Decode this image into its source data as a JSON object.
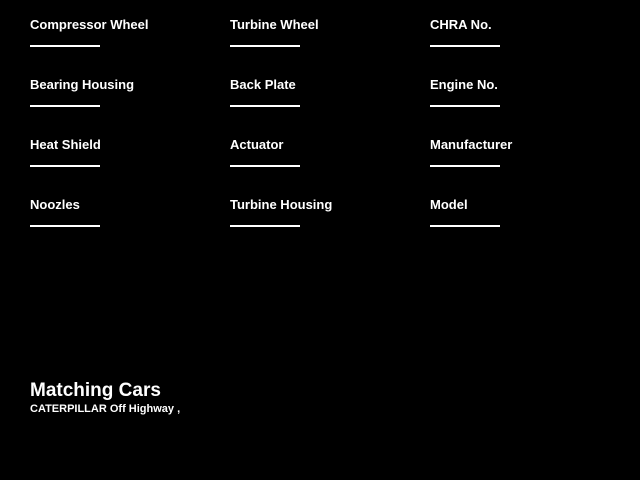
{
  "window": {
    "background_color": "#000000",
    "text_color": "#ffffff"
  },
  "form": {
    "fields": [
      {
        "label": "Compressor Wheel",
        "value": ""
      },
      {
        "label": "Turbine Wheel",
        "value": ""
      },
      {
        "label": "CHRA No.",
        "value": ""
      },
      {
        "label": "Bearing Housing",
        "value": ""
      },
      {
        "label": "Back Plate",
        "value": ""
      },
      {
        "label": "Engine No.",
        "value": ""
      },
      {
        "label": "Heat Shield",
        "value": ""
      },
      {
        "label": "Actuator",
        "value": ""
      },
      {
        "label": "Manufacturer",
        "value": ""
      },
      {
        "label": "Noozles",
        "value": ""
      },
      {
        "label": "Turbine Housing",
        "value": ""
      },
      {
        "label": "Model",
        "value": ""
      }
    ]
  },
  "results": {
    "title": "Matching Cars",
    "items": [
      "CATERPILLAR Off Highway ,"
    ]
  }
}
